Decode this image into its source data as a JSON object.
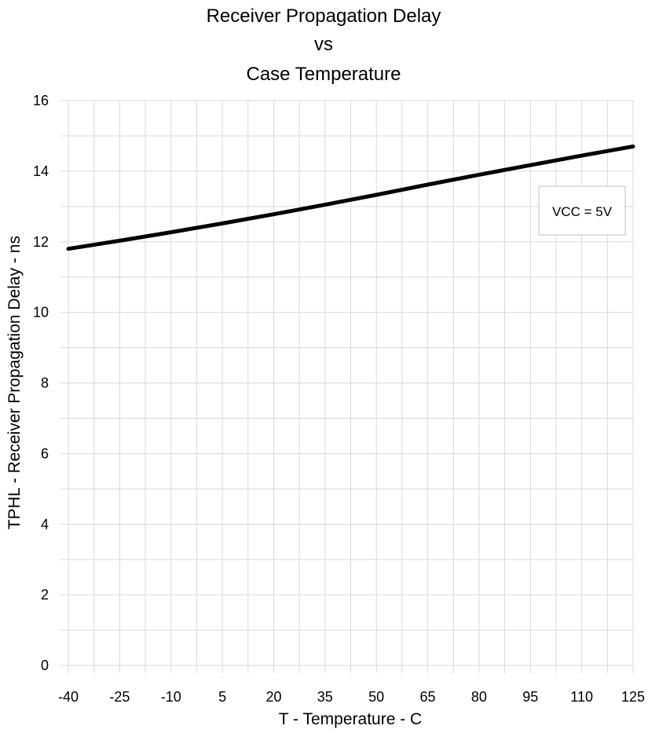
{
  "chart_data": {
    "type": "line",
    "title_lines": [
      "Receiver Propagation Delay",
      "vs",
      "Case Temperature"
    ],
    "xlabel": "T - Temperature - C",
    "ylabel": "TPHL - Receiver Propagation Delay - ns",
    "xlim": [
      -40,
      125
    ],
    "ylim": [
      0,
      16
    ],
    "x_ticks": [
      -40,
      -25,
      -10,
      5,
      20,
      35,
      50,
      65,
      80,
      95,
      110,
      125
    ],
    "y_ticks": [
      0,
      2,
      4,
      6,
      8,
      10,
      12,
      14,
      16
    ],
    "x_minor_step": 7.5,
    "y_minor_step": 1,
    "grid": true,
    "series": [
      {
        "color": "#000000",
        "x": [
          -40,
          -25,
          -10,
          5,
          20,
          35,
          50,
          65,
          80,
          95,
          110,
          125
        ],
        "y": [
          11.8,
          12.03,
          12.27,
          12.52,
          12.78,
          13.05,
          13.33,
          13.62,
          13.9,
          14.17,
          14.44,
          14.7
        ]
      }
    ],
    "annotation": "VCC = 5V",
    "annotation_placement": "right"
  }
}
